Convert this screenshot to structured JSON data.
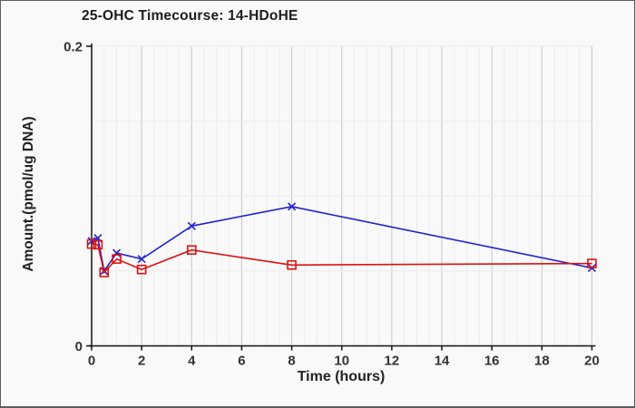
{
  "window": {
    "background": "#f9f9f9",
    "border_color": "#5e5e5e"
  },
  "colors": {
    "axis": "#111111",
    "tick_text": "#333333",
    "title_text": "#1c1c1c",
    "grid_minor": "#ececec",
    "grid_major": "#c6c6c6",
    "series_blue": "#2222cc",
    "series_red": "#dd1111"
  },
  "chart_data": {
    "type": "line",
    "title": "25-OHC Timecourse: 14-HDoHE",
    "xlabel": "Time (hours)",
    "ylabel": "Amount.(pmol/ug DNA)",
    "xlim": [
      0,
      20
    ],
    "ylim": [
      0,
      0.2
    ],
    "x_tick_values": [
      0,
      2,
      4,
      6,
      8,
      10,
      12,
      14,
      16,
      18,
      20
    ],
    "x_tick_labels": [
      "0",
      "2",
      "4",
      "6",
      "8",
      "10",
      "12",
      "14",
      "16",
      "18",
      "20"
    ],
    "x_minor_grid_step": 0.5,
    "y_grid_values": [
      0.05,
      0.1,
      0.15,
      0.2
    ],
    "y_ticks": [
      {
        "value": 0,
        "label": "0"
      },
      {
        "value": 0.2,
        "label": "0.2"
      }
    ],
    "grid": true,
    "legend": "none",
    "x": [
      0,
      0.25,
      0.5,
      1,
      2,
      4,
      8,
      20
    ],
    "series": [
      {
        "name": "blue-x-markers",
        "color": "#2222cc",
        "marker": "x",
        "values": [
          0.07,
          0.072,
          0.05,
          0.062,
          0.058,
          0.08,
          0.093,
          0.052
        ]
      },
      {
        "name": "red-open-squares",
        "color": "#dd1111",
        "marker": "open-square",
        "values": [
          0.068,
          0.0675,
          0.049,
          0.058,
          0.051,
          0.064,
          0.054,
          0.055
        ]
      }
    ]
  }
}
